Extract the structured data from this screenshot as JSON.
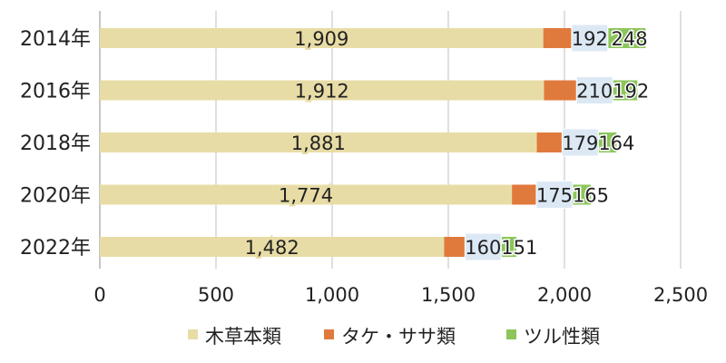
{
  "chart_data": {
    "type": "bar",
    "orientation": "horizontal",
    "stacked": true,
    "categories": [
      "2014年",
      "2016年",
      "2018年",
      "2020年",
      "2022年"
    ],
    "series": [
      {
        "name": "木草本類",
        "values": [
          1909,
          1912,
          1881,
          1774,
          1482
        ],
        "labels": [
          "1,909",
          "1,912",
          "1,881",
          "1,774",
          "1,482"
        ],
        "color": "#e8dca6"
      },
      {
        "name": "タケ・ササ類",
        "values": [
          192,
          210,
          179,
          175,
          160
        ],
        "labels": [
          "192",
          "210",
          "179",
          "175",
          "160"
        ],
        "color": "#e07a3c"
      },
      {
        "name": "ツル性類",
        "values": [
          248,
          192,
          164,
          165,
          151
        ],
        "labels": [
          "248",
          "192",
          "164",
          "165",
          "151"
        ],
        "color": "#8cc65a"
      }
    ],
    "xlim": [
      0,
      2500
    ],
    "xticks": [
      0,
      500,
      1000,
      1500,
      2000,
      2500
    ],
    "xtick_labels": [
      "0",
      "500",
      "1,000",
      "1,500",
      "2,000",
      "2,500"
    ],
    "grid": true,
    "legend_position": "bottom",
    "label_background_color": "#dce9f5"
  }
}
